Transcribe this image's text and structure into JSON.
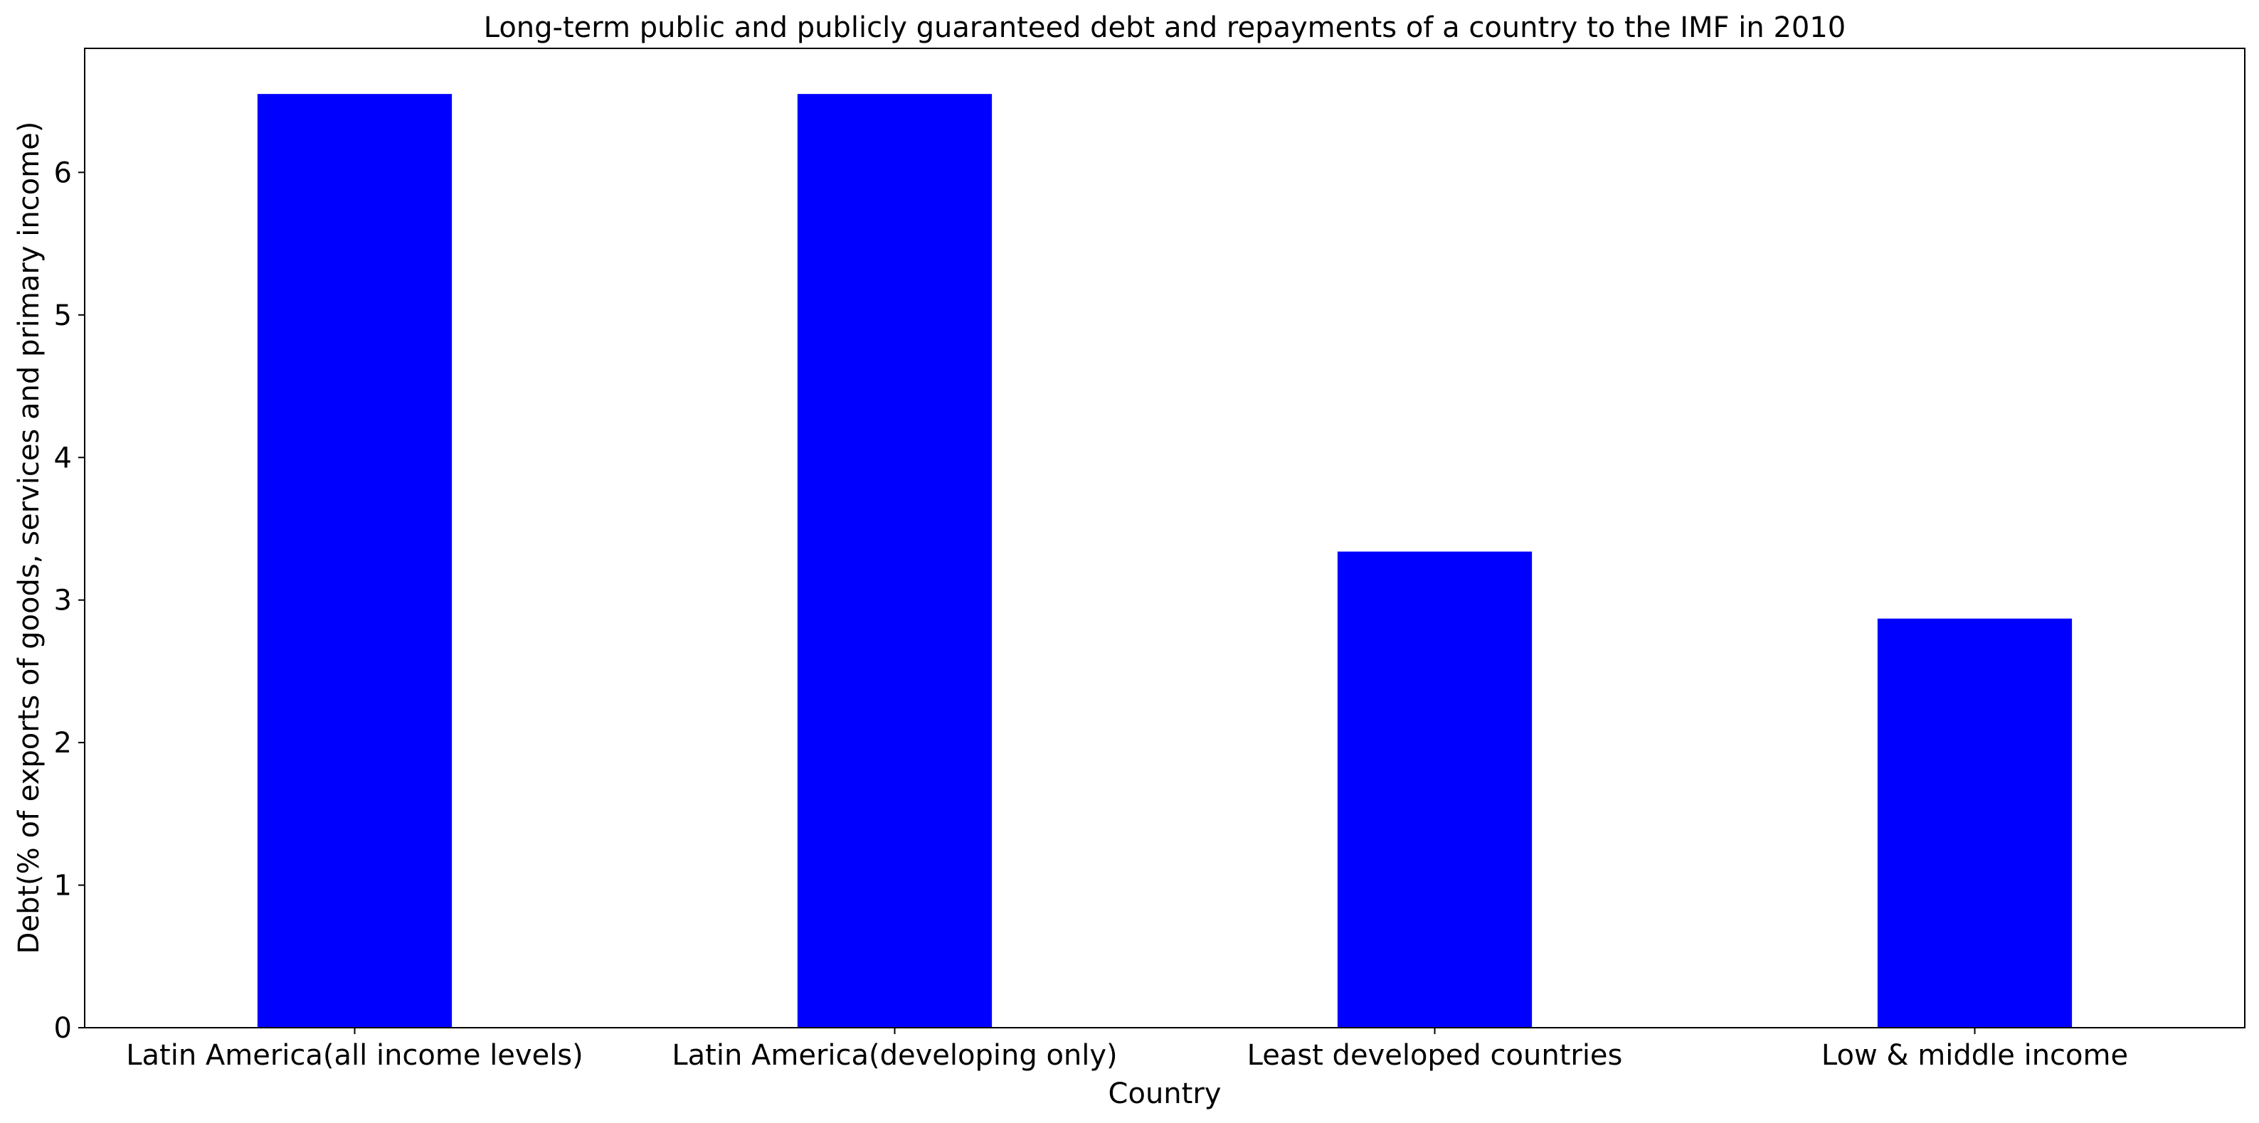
{
  "chart_data": {
    "type": "bar",
    "title": "Long-term public and publicly guaranteed debt and repayments of a country to the IMF in 2010",
    "xlabel": "Country",
    "ylabel": "Debt(% of exports of goods, services and primary income)",
    "categories": [
      "Latin America(all income levels)",
      "Latin America(developing only)",
      "Least developed countries",
      "Low & middle income"
    ],
    "values": [
      6.55,
      6.55,
      3.34,
      2.87
    ],
    "ylim": [
      0,
      6.87
    ],
    "yticks": [
      0,
      1,
      2,
      3,
      4,
      5,
      6
    ],
    "bar_color": "#0000ff",
    "grid": false,
    "legend": null
  }
}
